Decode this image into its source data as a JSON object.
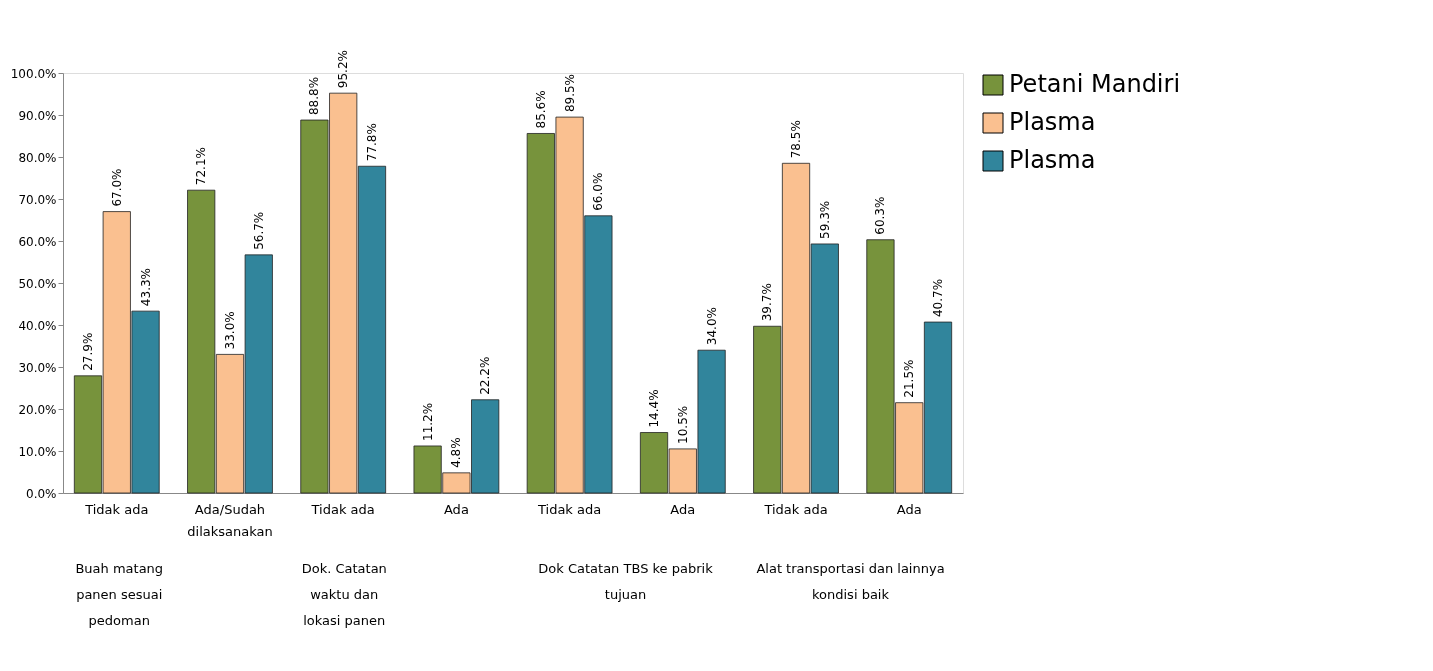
{
  "chart_data": {
    "type": "bar",
    "categories": [
      "Tidak ada",
      "Ada/Sudah dilaksanakan",
      "Tidak ada",
      "Ada",
      "Tidak ada",
      "Ada",
      "Tidak ada",
      "Ada"
    ],
    "series": [
      {
        "name": "Petani Mandiri",
        "color": "#77933c",
        "values": [
          27.9,
          72.1,
          88.8,
          11.2,
          85.6,
          14.4,
          39.7,
          60.3
        ],
        "value_labels": [
          "27.9%",
          "72.1%",
          "88.8%",
          "11.2%",
          "85.6%",
          "14.4%",
          "39.7%",
          "60.3%"
        ]
      },
      {
        "name": "Plasma",
        "color": "#fac090",
        "values": [
          67.0,
          33.0,
          95.2,
          4.8,
          89.5,
          10.5,
          78.5,
          21.5
        ],
        "value_labels": [
          "67.0%",
          "33.0%",
          "95.2%",
          "4.8%",
          "89.5%",
          "10.5%",
          "78.5%",
          "21.5%"
        ]
      },
      {
        "name": "Plasma",
        "color": "#31859c",
        "values": [
          43.3,
          56.7,
          77.8,
          22.2,
          66.0,
          34.0,
          59.3,
          40.7
        ],
        "value_labels": [
          "43.3%",
          "56.7%",
          "77.8%",
          "22.2%",
          "66.0%",
          "34.0%",
          "59.3%",
          "40.7%"
        ]
      }
    ],
    "ylim": [
      0,
      100
    ],
    "yticks": [
      {
        "value": 0,
        "label": "0.0%"
      },
      {
        "value": 10,
        "label": "10.0%"
      },
      {
        "value": 20,
        "label": "20.0%"
      },
      {
        "value": 30,
        "label": "30.0%"
      },
      {
        "value": 40,
        "label": "40.0%"
      },
      {
        "value": 50,
        "label": "50.0%"
      },
      {
        "value": 60,
        "label": "60.0%"
      },
      {
        "value": 70,
        "label": "70.0%"
      },
      {
        "value": 80,
        "label": "80.0%"
      },
      {
        "value": 90,
        "label": "90.0%"
      },
      {
        "value": 100,
        "label": "100.0%"
      }
    ],
    "annotations": [
      "Buah matang panen sesuai pedoman",
      "Dok. Catatan waktu dan lokasi panen",
      "Dok Catatan TBS ke pabrik tujuan",
      "Alat transportasi dan lainnya kondisi baik"
    ],
    "grid": false,
    "legend": "right"
  }
}
